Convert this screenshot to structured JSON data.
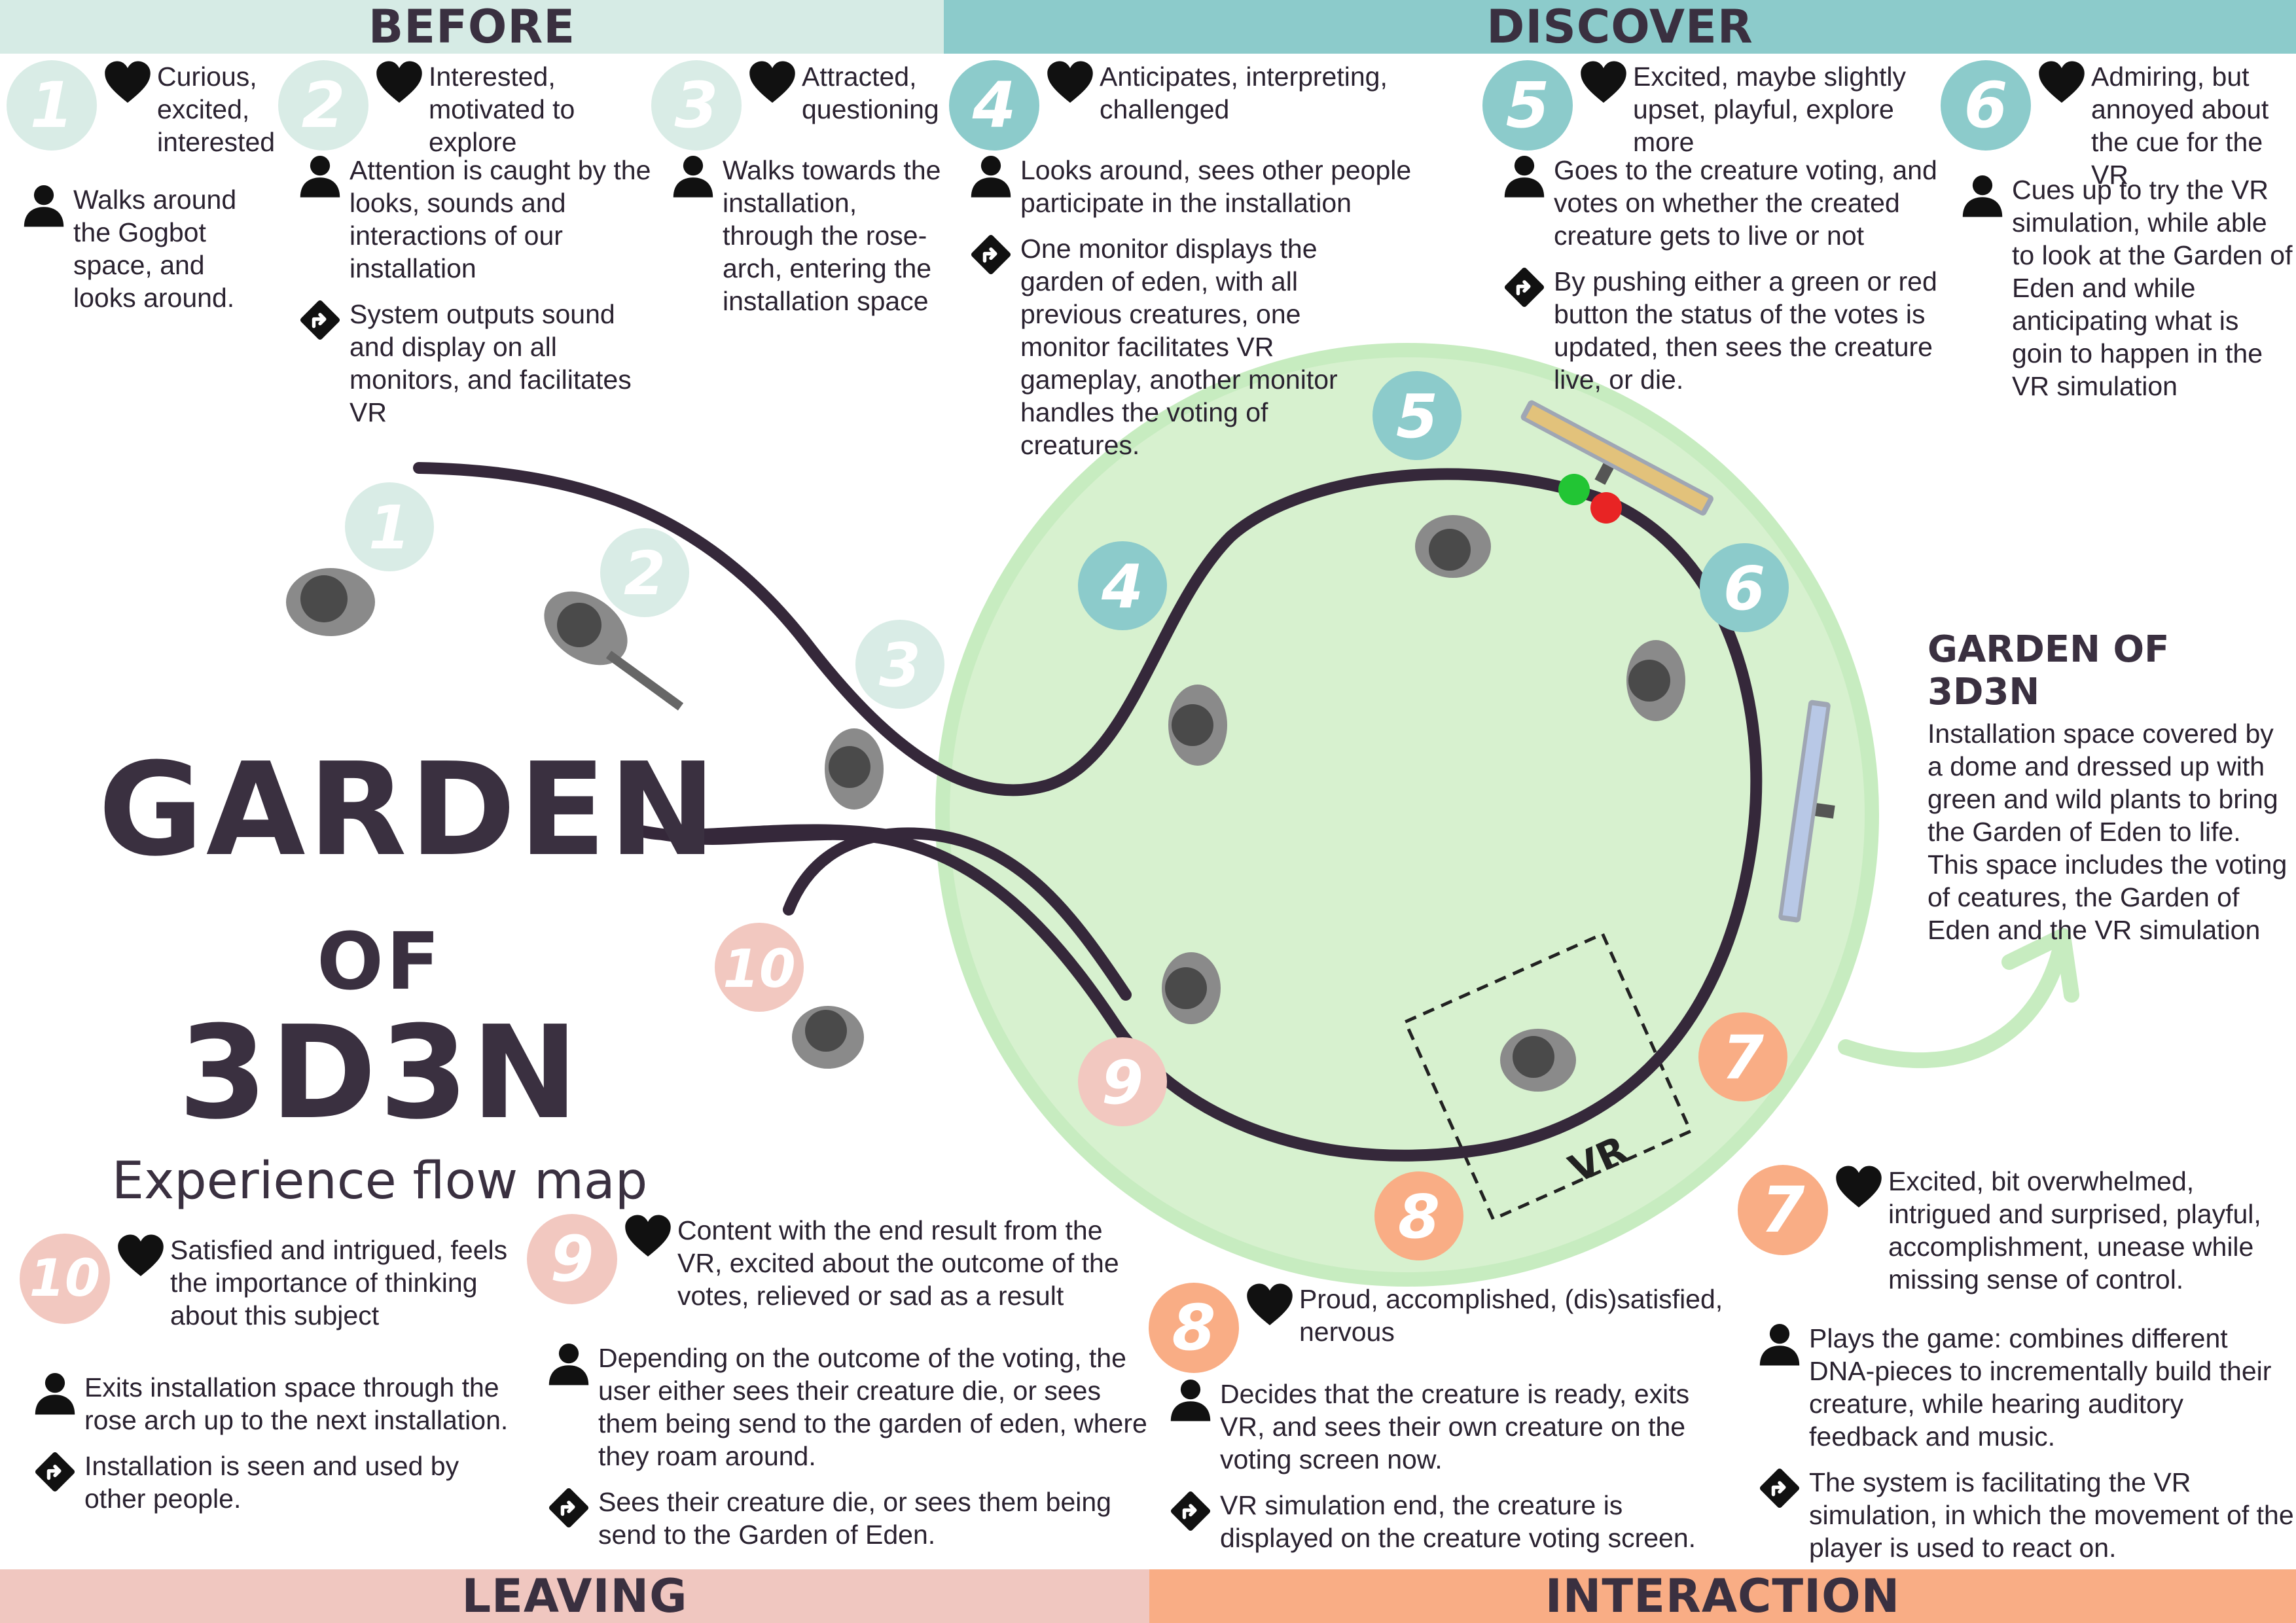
{
  "bands": {
    "before": "BEFORE",
    "discover": "DISCOVER",
    "leaving": "LEAVING",
    "interaction": "INTERACTION"
  },
  "title": {
    "line1": "GARDEN",
    "of": "OF",
    "line2_main": "3D3N",
    "subtitle": "Experience flow map"
  },
  "garden_info": {
    "heading": "GARDEN OF 3D3N",
    "body": "Installation space covered by a dome and dressed up with green and wild plants to bring the Garden of Eden to life.  This space includes the voting of ceatures, the Garden of Eden and the VR simulation"
  },
  "vr_label": "VR",
  "stages": [
    {
      "num": "1",
      "feeling": "Curious, excited, interested",
      "action": "Walks around the Gogbot space, and looks around.",
      "system": ""
    },
    {
      "num": "2",
      "feeling": "Interested, motivated to explore",
      "action": "Attention is caught by the looks, sounds and interactions of our installation",
      "system": "System outputs sound and display on all monitors, and facilitates VR"
    },
    {
      "num": "3",
      "feeling": "Attracted, questioning",
      "action": "Walks towards the installation, through the rose-arch, entering the installation space",
      "system": ""
    },
    {
      "num": "4",
      "feeling": "Anticipates, interpreting, challenged",
      "action": "Looks around, sees other people participate in the installation",
      "system": "One monitor displays the garden of eden, with all previous creatures, one monitor facilitates VR gameplay, another monitor handles the voting of creatures."
    },
    {
      "num": "5",
      "feeling": "Excited, maybe slightly upset, playful, explore more",
      "action": "Goes to the creature voting, and votes on whether the created creature gets to live or not",
      "system": "By pushing either a green or red button the status of the votes is updated, then sees the creature live, or die."
    },
    {
      "num": "6",
      "feeling": "Admiring, but annoyed about the cue for the VR",
      "action": "Cues up to try the VR simulation, while able to look at the Garden of Eden and while anticipating what is goin to happen in the VR simulation",
      "system": ""
    },
    {
      "num": "7",
      "feeling": "Excited, bit overwhelmed, intrigued and surprised, playful, accomplishment, unease while missing sense of control.",
      "action": "Plays the game: combines different DNA-pieces to incrementally build their creature, while hearing auditory feedback and music.",
      "system": "The system is facilitating the VR simulation, in which the movement of the player is used to react on."
    },
    {
      "num": "8",
      "feeling": "Proud, accomplished, (dis)satisfied, nervous",
      "action": "Decides that the creature is ready, exits VR, and sees their own creature on the voting screen now.",
      "system": "VR simulation end, the creature is displayed on the creature voting screen."
    },
    {
      "num": "9",
      "feeling": "Content with the end result from the VR, excited about the outcome of the votes, relieved or sad as a result",
      "action": "Depending on the outcome of the voting, the user either sees their creature die, or sees them being send to the garden of eden, where they roam around.",
      "system": "Sees their creature die, or sees them being send to the Garden of Eden."
    },
    {
      "num": "10",
      "feeling": "Satisfied and intrigued, feels the importance of thinking about this subject",
      "action": "Exits installation space through the rose arch up to the next installation.",
      "system": "Installation is seen and used by other  people."
    }
  ],
  "colors": {
    "before": "#d9ece6",
    "discover": "#8ccbcb",
    "interaction": "#f9ad85",
    "leaving": "#f2c8c0",
    "dome": "#d7f1cf",
    "dome_ring": "#c7ecc0",
    "path": "#35283a",
    "vote_green": "#22c534",
    "vote_red": "#e82424"
  }
}
